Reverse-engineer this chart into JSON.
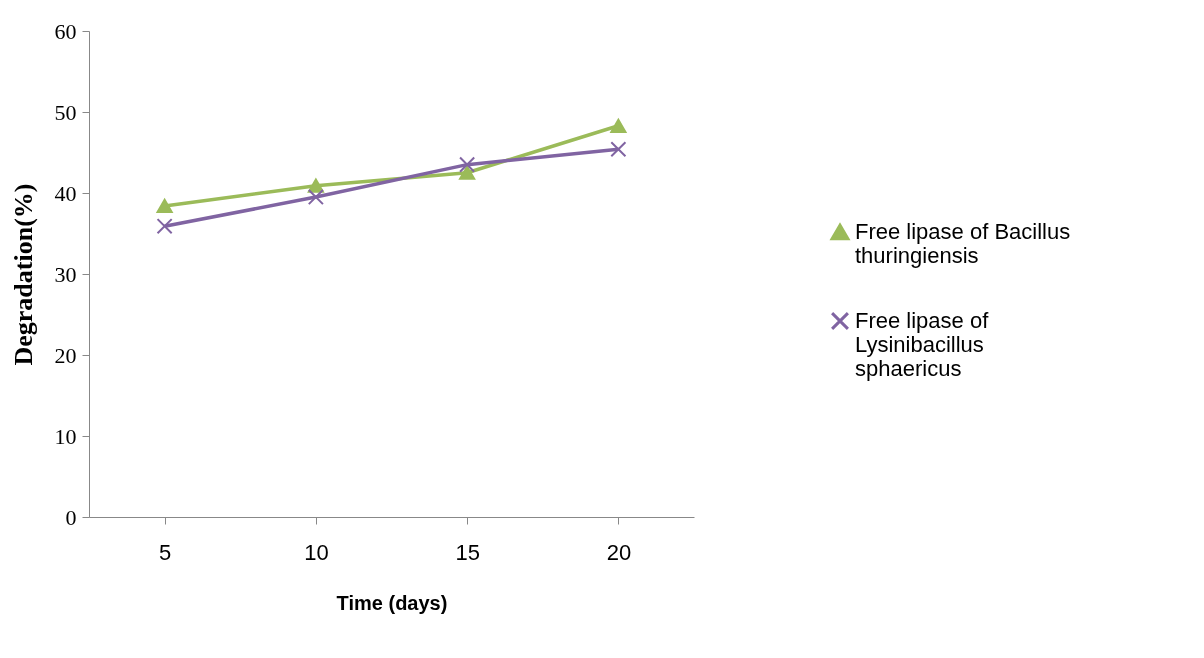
{
  "chart_data": {
    "type": "line",
    "xlabel": "Time (days)",
    "ylabel": "Degradation(%)",
    "categories": [
      "5",
      "10",
      "15",
      "20"
    ],
    "ylim": [
      0,
      60
    ],
    "yticks": [
      0,
      10,
      20,
      30,
      40,
      50,
      60
    ],
    "grid": false,
    "legend": "right",
    "line_style": "solid",
    "series": [
      {
        "name": "Free lipase of  Bacillus thuringiensis",
        "color": "#9bbb59",
        "marker": "triangle",
        "values": [
          38.4,
          40.9,
          42.5,
          48.3
        ]
      },
      {
        "name": "Free lipase of Lysinibacillus sphaericus",
        "color": "#8064a2",
        "marker": "cross",
        "values": [
          35.9,
          39.5,
          43.5,
          45.4
        ]
      }
    ]
  }
}
